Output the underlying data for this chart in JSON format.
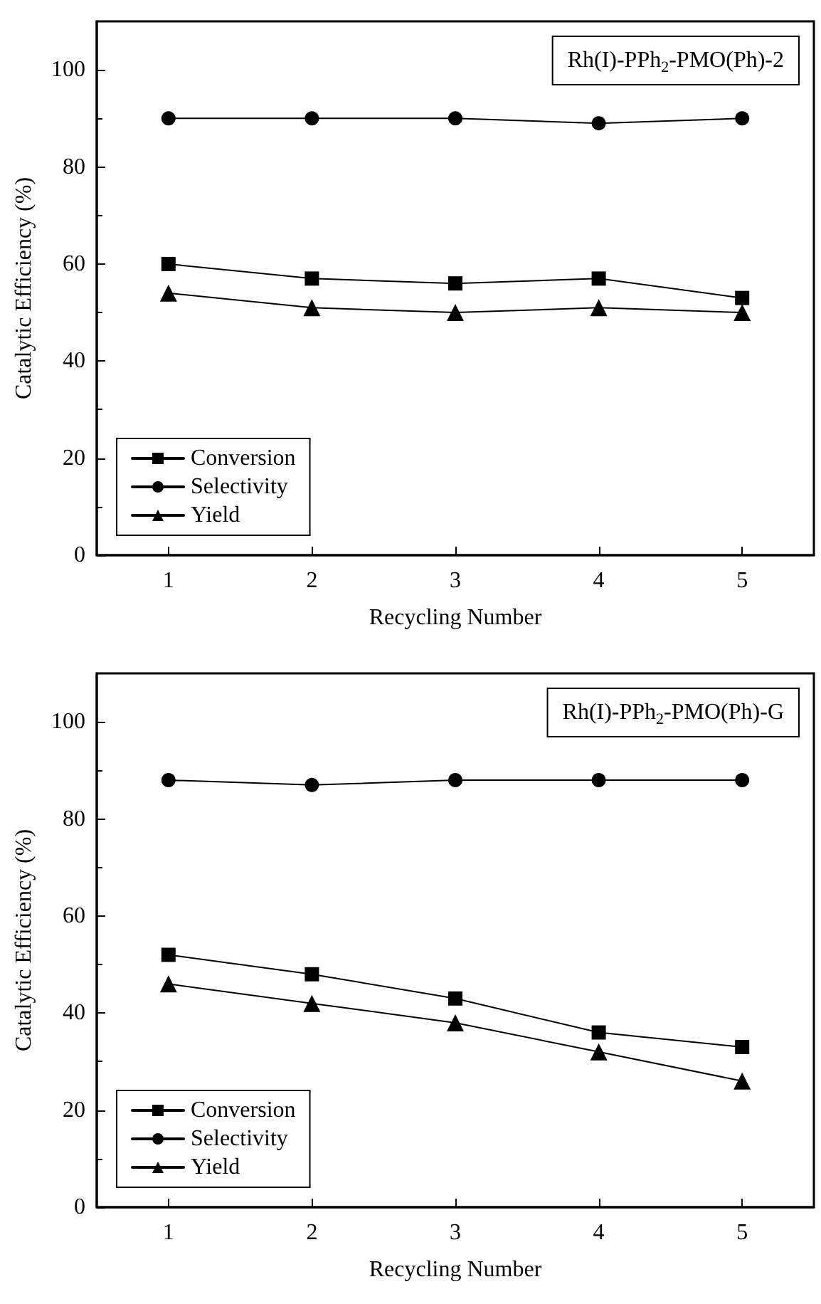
{
  "chart_data": [
    {
      "type": "line",
      "x": [
        1,
        2,
        3,
        4,
        5
      ],
      "xlabel": "Recycling Number",
      "ylabel": "Catalytic Efficiency (%)",
      "xlim": [
        0.5,
        5.5
      ],
      "xticks": [
        1,
        2,
        3,
        4,
        5
      ],
      "ylim": [
        0,
        110
      ],
      "yticks": [
        0,
        20,
        40,
        60,
        80,
        100
      ],
      "grid": false,
      "legend": "bottom left",
      "line_style": "solid",
      "annotations": [
        "Rh(I)-PPh$_{2}$-PMO(Ph)-2"
      ],
      "series": [
        {
          "name": "Conversion",
          "color": "#000000",
          "marker": "square",
          "values": [
            60,
            57,
            56,
            57,
            53
          ]
        },
        {
          "name": "Selectivity",
          "color": "#000000",
          "marker": "circle",
          "values": [
            90,
            90,
            90,
            89,
            90
          ]
        },
        {
          "name": "Yield",
          "color": "#000000",
          "marker": "triangle",
          "values": [
            54,
            51,
            50,
            51,
            50
          ]
        }
      ]
    },
    {
      "type": "line",
      "x": [
        1,
        2,
        3,
        4,
        5
      ],
      "xlabel": "Recycling Number",
      "ylabel": "Catalytic Efficiency (%)",
      "xlim": [
        0.5,
        5.5
      ],
      "xticks": [
        1,
        2,
        3,
        4,
        5
      ],
      "ylim": [
        0,
        110
      ],
      "yticks": [
        0,
        20,
        40,
        60,
        80,
        100
      ],
      "grid": false,
      "legend": "bottom left",
      "line_style": "solid",
      "annotations": [
        "Rh(I)-PPh$_{2}$-PMO(Ph)-G"
      ],
      "series": [
        {
          "name": "Conversion",
          "color": "#000000",
          "marker": "square",
          "values": [
            52,
            48,
            43,
            36,
            33
          ]
        },
        {
          "name": "Selectivity",
          "color": "#000000",
          "marker": "circle",
          "values": [
            88,
            87,
            88,
            88,
            88
          ]
        },
        {
          "name": "Yield",
          "color": "#000000",
          "marker": "triangle",
          "values": [
            46,
            42,
            38,
            32,
            26
          ]
        }
      ]
    }
  ]
}
